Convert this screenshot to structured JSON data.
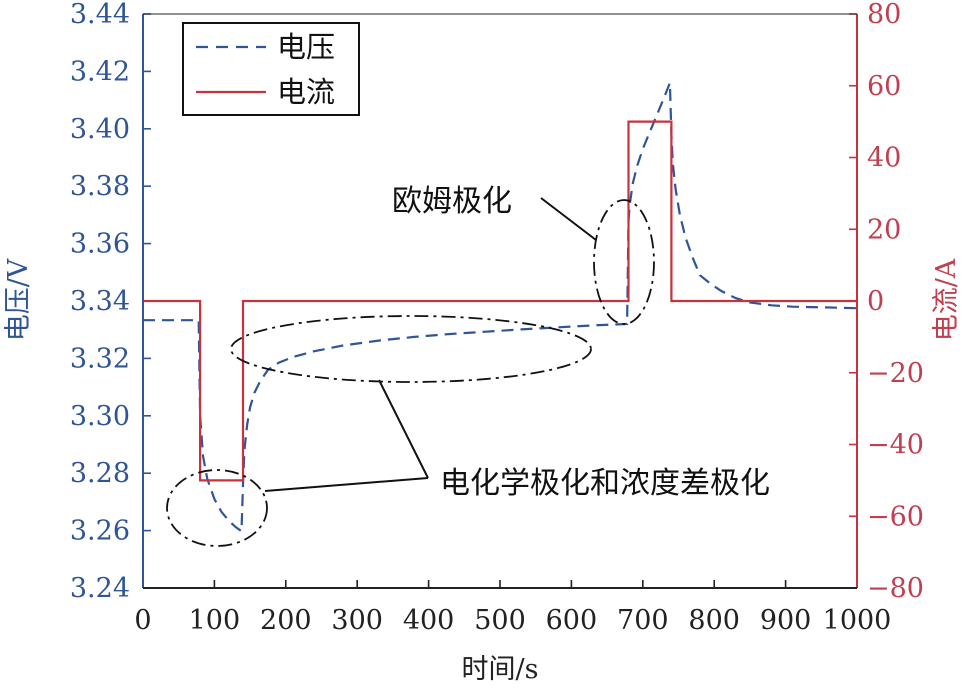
{
  "chart_data": {
    "type": "line",
    "xlabel": "时间/s",
    "ylabel_left": "电压/V",
    "ylabel_right": "电流/A",
    "xlim": [
      0,
      1000
    ],
    "ylim_left": [
      3.24,
      3.44
    ],
    "ylim_right": [
      -80,
      80
    ],
    "x_ticks": [
      "0",
      "100",
      "200",
      "300",
      "400",
      "500",
      "600",
      "700",
      "800",
      "900",
      "1000"
    ],
    "y_left_ticks": [
      "3.24",
      "3.26",
      "3.28",
      "3.30",
      "3.32",
      "3.34",
      "3.36",
      "3.38",
      "3.40",
      "3.42",
      "3.44"
    ],
    "y_right_ticks": [
      "−80",
      "−60",
      "−40",
      "−20",
      "0",
      "20",
      "40",
      "60",
      "80"
    ],
    "legend_position": "top-left",
    "grid": false,
    "series": [
      {
        "name": "电压",
        "axis": "left",
        "style": "dashed",
        "color": "#2f5597",
        "x": [
          0,
          78,
          80,
          84,
          90,
          100,
          110,
          120,
          130,
          138,
          140,
          142,
          146,
          150,
          156,
          164,
          175,
          190,
          210,
          240,
          280,
          330,
          380,
          430,
          480,
          530,
          580,
          630,
          678,
          680,
          682,
          686,
          692,
          700,
          710,
          720,
          730,
          738,
          740,
          742,
          746,
          752,
          760,
          770,
          780,
          795,
          810,
          830,
          850,
          880,
          910,
          950,
          1000
        ],
        "values": [
          3.3333,
          3.3333,
          3.3,
          3.286,
          3.278,
          3.271,
          3.2665,
          3.2635,
          3.2612,
          3.2598,
          3.276,
          3.288,
          3.297,
          3.303,
          3.308,
          3.312,
          3.316,
          3.3185,
          3.3205,
          3.3225,
          3.3245,
          3.3262,
          3.3275,
          3.3285,
          3.3293,
          3.3301,
          3.3308,
          3.3315,
          3.332,
          3.368,
          3.374,
          3.381,
          3.387,
          3.393,
          3.399,
          3.405,
          3.411,
          3.416,
          3.398,
          3.388,
          3.379,
          3.37,
          3.362,
          3.355,
          3.349,
          3.346,
          3.3435,
          3.341,
          3.3395,
          3.3385,
          3.338,
          3.3378,
          3.3375
        ]
      },
      {
        "name": "电流",
        "axis": "right",
        "style": "solid",
        "color": "#c8323c",
        "x": [
          0,
          80,
          80,
          140,
          140,
          680,
          680,
          740,
          740,
          1000
        ],
        "values": [
          0,
          0,
          -50,
          -50,
          0,
          0,
          50,
          50,
          0,
          0
        ]
      }
    ],
    "annotations": [
      {
        "text": "欧姆极化"
      },
      {
        "text": "电化学极化和浓度差极化"
      }
    ]
  }
}
